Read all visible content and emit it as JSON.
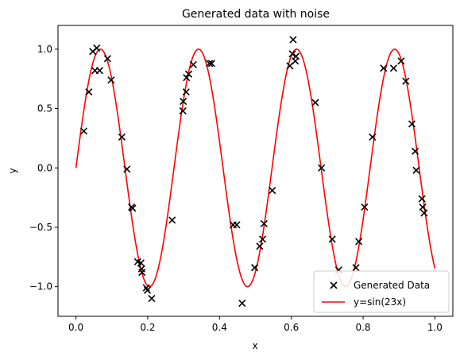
{
  "chart_data": {
    "type": "scatter",
    "title": "Generated data with noise",
    "xlabel": "x",
    "ylabel": "y",
    "xlim": [
      -0.05,
      1.05
    ],
    "ylim": [
      -1.25,
      1.2
    ],
    "xticks": [
      0.0,
      0.2,
      0.4,
      0.6,
      0.8,
      1.0
    ],
    "xtick_labels": [
      "0.0",
      "0.2",
      "0.4",
      "0.6",
      "0.8",
      "1.0"
    ],
    "yticks": [
      -1.0,
      -0.5,
      0.0,
      0.5,
      1.0
    ],
    "ytick_labels": [
      "−1.0",
      "−0.5",
      "0.0",
      "0.5",
      "1.0"
    ],
    "grid": false,
    "legend_position": "lower-right",
    "series": [
      {
        "name": "Generated Data",
        "kind": "scatter",
        "marker": "x",
        "color": "#000000",
        "points": [
          [
            0.022,
            0.31
          ],
          [
            0.036,
            0.64
          ],
          [
            0.047,
            0.98
          ],
          [
            0.053,
            0.82
          ],
          [
            0.058,
            1.01
          ],
          [
            0.066,
            0.82
          ],
          [
            0.088,
            0.92
          ],
          [
            0.098,
            0.74
          ],
          [
            0.128,
            0.26
          ],
          [
            0.142,
            -0.01
          ],
          [
            0.155,
            -0.33
          ],
          [
            0.158,
            -0.34
          ],
          [
            0.172,
            -0.79
          ],
          [
            0.181,
            -0.8
          ],
          [
            0.183,
            -0.85
          ],
          [
            0.184,
            -0.88
          ],
          [
            0.196,
            -1.01
          ],
          [
            0.199,
            -1.03
          ],
          [
            0.211,
            -1.1
          ],
          [
            0.268,
            -0.44
          ],
          [
            0.298,
            0.48
          ],
          [
            0.299,
            0.56
          ],
          [
            0.307,
            0.64
          ],
          [
            0.308,
            0.76
          ],
          [
            0.314,
            0.79
          ],
          [
            0.327,
            0.87
          ],
          [
            0.372,
            0.88
          ],
          [
            0.378,
            0.88
          ],
          [
            0.438,
            -0.48
          ],
          [
            0.448,
            -0.48
          ],
          [
            0.463,
            -1.14
          ],
          [
            0.498,
            -0.84
          ],
          [
            0.512,
            -0.66
          ],
          [
            0.52,
            -0.6
          ],
          [
            0.524,
            -0.47
          ],
          [
            0.547,
            -0.19
          ],
          [
            0.596,
            0.86
          ],
          [
            0.603,
            0.96
          ],
          [
            0.605,
            1.08
          ],
          [
            0.611,
            0.9
          ],
          [
            0.613,
            0.94
          ],
          [
            0.667,
            0.55
          ],
          [
            0.684,
            0.0
          ],
          [
            0.714,
            -0.6
          ],
          [
            0.732,
            -0.86
          ],
          [
            0.78,
            -0.84
          ],
          [
            0.788,
            -0.62
          ],
          [
            0.804,
            -0.33
          ],
          [
            0.826,
            0.26
          ],
          [
            0.857,
            0.84
          ],
          [
            0.885,
            0.84
          ],
          [
            0.906,
            0.9
          ],
          [
            0.919,
            0.73
          ],
          [
            0.936,
            0.37
          ],
          [
            0.945,
            0.14
          ],
          [
            0.948,
            -0.02
          ],
          [
            0.964,
            -0.26
          ],
          [
            0.966,
            -0.33
          ],
          [
            0.97,
            -0.38
          ]
        ]
      },
      {
        "name": "y=sin(23x)",
        "kind": "line",
        "color": "#ff0000",
        "function": "sin(23x)",
        "x_range": [
          0.0,
          1.0
        ]
      }
    ]
  }
}
